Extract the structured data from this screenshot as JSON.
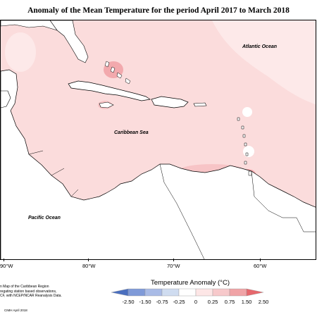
{
  "title": "Anomaly of the Mean Temperature for the period April 2017 to March 2018",
  "ocean_labels": {
    "atlantic": "Atlantic Ocean",
    "caribbean": "Caribbean Sea",
    "pacific": "Pacific Ocean"
  },
  "longitude_labels": [
    "90°W",
    "80°W",
    "70°W",
    "60°W"
  ],
  "legend": {
    "title": "Temperature Anomaly (°C)",
    "ticks": [
      "-2.50",
      "-1.50",
      "-0.75",
      "-0.25",
      "0",
      "0.25",
      "0.75",
      "1.50",
      "2.50"
    ],
    "colors": [
      "#4a6fbf",
      "#7f9ad8",
      "#a9bbe6",
      "#cfdcf0",
      "#ffffff",
      "#fde6e6",
      "#f7c9cb",
      "#f0a3a6",
      "#e6676c"
    ]
  },
  "credits": {
    "line1": "n Map of the Caribbean Region",
    "line2": "regating station based observations,",
    "line3": "CF, with NCEP/NCAR Reanalysis Data.",
    "tag": "CIMH April 2018"
  },
  "colors": {
    "sea_anomaly": "#fbdcdc",
    "warm_spot": "#f2a9ad",
    "land": "#ffffff",
    "coast": "#000000"
  }
}
